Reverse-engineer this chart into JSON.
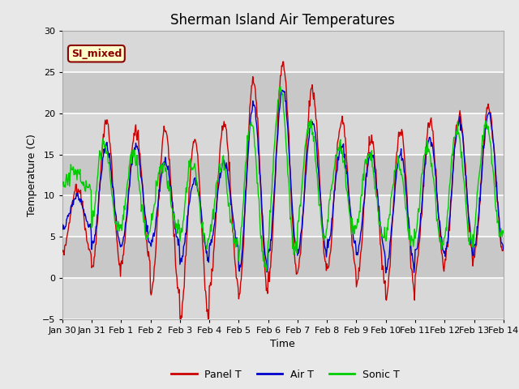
{
  "title": "Sherman Island Air Temperatures",
  "xlabel": "Time",
  "ylabel": "Temperature (C)",
  "ylim": [
    -5,
    30
  ],
  "yticks": [
    -5,
    0,
    5,
    10,
    15,
    20,
    25,
    30
  ],
  "date_labels": [
    "Jan 30",
    "Jan 31",
    "Feb 1",
    "Feb 2",
    "Feb 3",
    "Feb 4",
    "Feb 5",
    "Feb 6",
    "Feb 7",
    "Feb 8",
    "Feb 9",
    "Feb 10",
    "Feb 11",
    "Feb 12",
    "Feb 13",
    "Feb 14"
  ],
  "legend_label": "SI_mixed",
  "series_labels": [
    "Panel T",
    "Air T",
    "Sonic T"
  ],
  "colors": [
    "#cc0000",
    "#0000cc",
    "#00cc00"
  ],
  "fig_bg": "#e8e8e8",
  "plot_bg": "#dcdcdc",
  "band_light": "#e8e8e8",
  "band_dark": "#c8c8c8",
  "legend_box_bg": "#ffffcc",
  "legend_box_edge": "#8b0000",
  "title_fontsize": 12,
  "axis_fontsize": 9,
  "tick_fontsize": 8,
  "n_days": 15,
  "pts_per_day": 48
}
